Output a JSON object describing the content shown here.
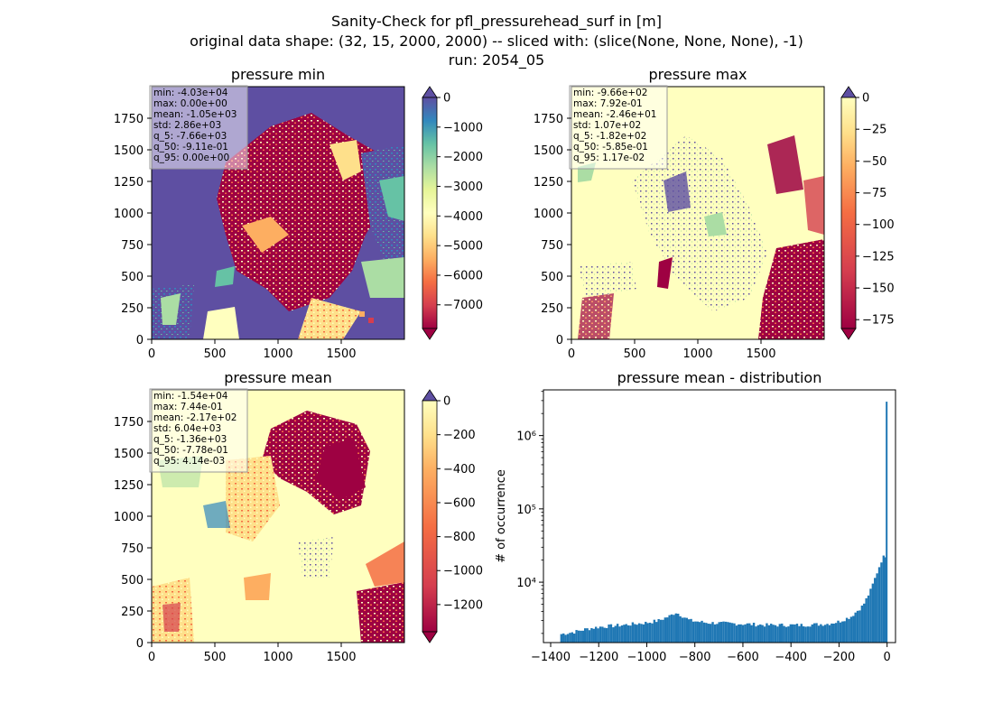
{
  "figure": {
    "title_lines": [
      "Sanity-Check for pfl_pressurehead_surf in [m]",
      "original data shape: (32, 15, 2000, 2000) -- sliced with: (slice(None, None, None), -1)",
      "run: 2054_05"
    ]
  },
  "chart_data": [
    {
      "type": "heatmap",
      "title": "pressure min",
      "x_ticks": [
        0,
        500,
        1000,
        1500
      ],
      "y_ticks": [
        0,
        250,
        500,
        750,
        1000,
        1250,
        1500,
        1750
      ],
      "xlim": [
        0,
        2000
      ],
      "ylim": [
        0,
        2000
      ],
      "colorbar": {
        "range": [
          -7800,
          0
        ],
        "ticks": [
          0,
          -1000,
          -2000,
          -3000,
          -4000,
          -5000,
          -6000,
          -7000
        ],
        "tick_labels": [
          "0",
          "−1000",
          "−2000",
          "−3000",
          "−4000",
          "−5000",
          "−6000",
          "−7000"
        ],
        "colormap": "Spectral",
        "extend": "both"
      },
      "stats_box": [
        "min: -4.03e+04",
        "max: 0.00e+00",
        "mean: -1.05e+03",
        "std: 2.86e+03",
        "q_5: -7.66e+03",
        "q_50: -9.11e-01",
        "q_95: 0.00e+00"
      ]
    },
    {
      "type": "heatmap",
      "title": "pressure max",
      "x_ticks": [
        0,
        500,
        1000,
        1500
      ],
      "y_ticks": [
        0,
        250,
        500,
        750,
        1000,
        1250,
        1500,
        1750
      ],
      "xlim": [
        0,
        2000
      ],
      "ylim": [
        0,
        2000
      ],
      "colorbar": {
        "range": [
          -182,
          0
        ],
        "ticks": [
          0,
          -25,
          -50,
          -75,
          -100,
          -125,
          -150,
          -175
        ],
        "tick_labels": [
          "0",
          "−25",
          "−50",
          "−75",
          "−100",
          "−125",
          "−150",
          "−175"
        ],
        "colormap": "Spectral",
        "extend": "both"
      },
      "stats_box": [
        "min: -9.66e+02",
        "max: 7.92e-01",
        "mean: -2.46e+01",
        "std: 1.07e+02",
        "q_5: -1.82e+02",
        "q_50: -5.85e-01",
        "q_95: 1.17e-02"
      ]
    },
    {
      "type": "heatmap",
      "title": "pressure mean",
      "x_ticks": [
        0,
        500,
        1000,
        1500
      ],
      "y_ticks": [
        0,
        250,
        500,
        750,
        1000,
        1250,
        1500,
        1750
      ],
      "xlim": [
        0,
        2000
      ],
      "ylim": [
        0,
        2000
      ],
      "colorbar": {
        "range": [
          -1360,
          0
        ],
        "ticks": [
          0,
          -200,
          -400,
          -600,
          -800,
          -1000,
          -1200
        ],
        "tick_labels": [
          "0",
          "−200",
          "−400",
          "−600",
          "−800",
          "−1000",
          "−1200"
        ],
        "colormap": "Spectral",
        "extend": "both"
      },
      "stats_box": [
        "min: -1.54e+04",
        "max: 7.44e-01",
        "mean: -2.17e+02",
        "std: 6.04e+03",
        "q_5: -1.36e+03",
        "q_50: -7.78e-01",
        "q_95: 4.14e-03"
      ]
    },
    {
      "type": "bar",
      "title": "pressure mean - distribution",
      "ylabel": "# of occurrence",
      "y_scale": "log",
      "xlim": [
        -1430,
        35
      ],
      "ylim": [
        1500,
        4200000
      ],
      "x_ticks": [
        -1400,
        -1200,
        -1000,
        -800,
        -600,
        -400,
        -200,
        0
      ],
      "x_tick_labels": [
        "−1400",
        "−1200",
        "−1000",
        "−800",
        "−600",
        "−400",
        "−200",
        "0"
      ],
      "y_ticks": [
        10000,
        100000,
        1000000
      ],
      "y_tick_labels": [
        "10⁴",
        "10⁵",
        "10⁶"
      ],
      "bar_color": "#1f77b4",
      "histogram": {
        "x_start": -1360,
        "bin_width": 9,
        "counts_profile": [
          [
            -1360,
            1950
          ],
          [
            -1300,
            2100
          ],
          [
            -1250,
            2300
          ],
          [
            -1200,
            2450
          ],
          [
            -1100,
            2600
          ],
          [
            -1000,
            2800
          ],
          [
            -950,
            3000
          ],
          [
            -900,
            3500
          ],
          [
            -880,
            3900
          ],
          [
            -860,
            3600
          ],
          [
            -820,
            3000
          ],
          [
            -750,
            2800
          ],
          [
            -600,
            2700
          ],
          [
            -500,
            2600
          ],
          [
            -350,
            2600
          ],
          [
            -250,
            2700
          ],
          [
            -200,
            2900
          ],
          [
            -150,
            3400
          ],
          [
            -100,
            4800
          ],
          [
            -70,
            7500
          ],
          [
            -40,
            14000
          ],
          [
            -20,
            21000
          ],
          [
            -10,
            23000
          ]
        ],
        "spike": {
          "x": 0,
          "count": 2900000
        }
      }
    }
  ]
}
